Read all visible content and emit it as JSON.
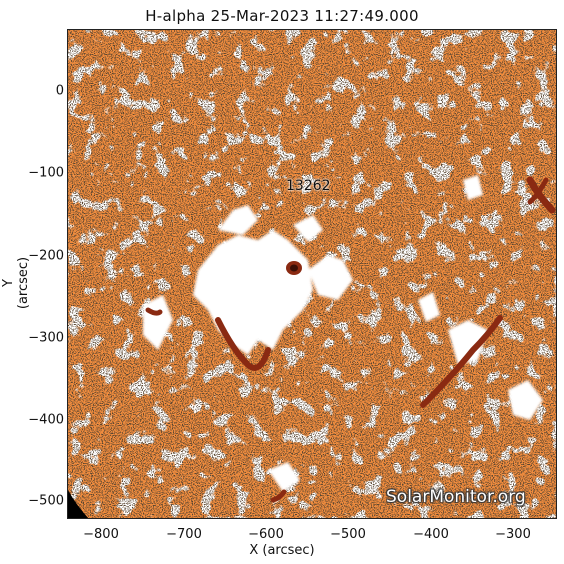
{
  "title": "H-alpha 25-Mar-2023 11:27:49.000",
  "axes": {
    "xlabel": "X (arcsec)",
    "ylabel": "Y (arcsec)",
    "xticks": [
      "−800",
      "−700",
      "−600",
      "−500",
      "−400",
      "−300"
    ],
    "yticks": [
      "0",
      "−100",
      "−200",
      "−300",
      "−400",
      "−500"
    ]
  },
  "region_label": "13262",
  "watermark": "SolarMonitor.org",
  "colors": {
    "base": "#f08c3e",
    "bright": "#ffffff",
    "dark": "#8a2a12",
    "speckle": "#1a1008"
  }
}
